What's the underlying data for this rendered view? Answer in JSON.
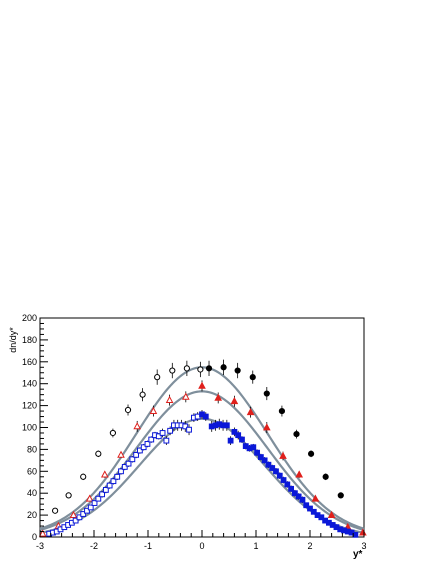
{
  "chart_data": {
    "type": "scatter",
    "title": "",
    "xlabel": "y*",
    "ylabel": "dn/dy*",
    "xlim": [
      -3,
      3
    ],
    "ylim": [
      0,
      200
    ],
    "xticks": [
      -3,
      -2,
      -1,
      0,
      1,
      2,
      3
    ],
    "xtick_labels": [
      "-3",
      "-2",
      "-1",
      "0",
      "1",
      "2",
      "3"
    ],
    "yticks": [
      0,
      20,
      40,
      60,
      80,
      100,
      120,
      140,
      160,
      180,
      200
    ],
    "ytick_labels": [
      "0",
      "20",
      "40",
      "60",
      "80",
      "100",
      "120",
      "140",
      "160",
      "180",
      "200"
    ],
    "grid": false,
    "colors": {
      "fit": "#7f8f9c",
      "black": "#000000",
      "red": "#e0201c",
      "blue": "#0a18d8"
    },
    "fits": [
      {
        "amplitude": 155,
        "width": 1.22
      },
      {
        "amplitude": 133,
        "width": 1.22
      },
      {
        "amplitude": 108,
        "width": 1.16
      }
    ],
    "series": [
      {
        "marker": "open-circle",
        "color": "#000000",
        "x": [
          -2.72,
          -2.47,
          -2.2,
          -1.92,
          -1.65,
          -1.37,
          -1.1,
          -0.83,
          -0.55,
          -0.28,
          -0.03
        ],
        "y": [
          24,
          38,
          55,
          76,
          95,
          116,
          130,
          146,
          152,
          154,
          153
        ],
        "err": [
          2,
          2,
          3,
          3,
          4,
          5,
          6,
          7,
          7,
          7,
          7
        ]
      },
      {
        "marker": "filled-circle",
        "color": "#000000",
        "x": [
          0.13,
          0.4,
          0.66,
          0.94,
          1.2,
          1.48,
          1.75,
          2.02,
          2.29,
          2.57
        ],
        "y": [
          154,
          155,
          152,
          146,
          131,
          115,
          94,
          76,
          55,
          38
        ],
        "err": [
          7,
          7,
          7,
          6,
          6,
          5,
          4,
          3,
          3,
          2
        ]
      },
      {
        "marker": "open-triangle",
        "color": "#e0201c",
        "x": [
          -2.95,
          -2.66,
          -2.38,
          -2.08,
          -1.8,
          -1.5,
          -1.2,
          -0.9,
          -0.6,
          -0.3
        ],
        "y": [
          3,
          10,
          20,
          35,
          57,
          75,
          101,
          115,
          125,
          128
        ],
        "err": [
          1,
          1,
          2,
          2,
          3,
          3,
          5,
          5,
          5,
          5
        ]
      },
      {
        "marker": "filled-triangle",
        "color": "#e0201c",
        "x": [
          0,
          0.3,
          0.6,
          0.9,
          1.2,
          1.5,
          1.8,
          2.1,
          2.4,
          2.7,
          2.98
        ],
        "y": [
          138,
          127,
          124,
          114,
          100,
          74,
          57,
          35,
          20,
          9,
          4
        ],
        "err": [
          5,
          5,
          5,
          5,
          5,
          4,
          3,
          2,
          2,
          1,
          1
        ]
      },
      {
        "marker": "open-square",
        "color": "#0a18d8",
        "x": [
          -2.83,
          -2.76,
          -2.69,
          -2.62,
          -2.55,
          -2.48,
          -2.41,
          -2.34,
          -2.27,
          -2.2,
          -2.13,
          -2.06,
          -1.99,
          -1.92,
          -1.85,
          -1.78,
          -1.71,
          -1.64,
          -1.57,
          -1.5,
          -1.43,
          -1.36,
          -1.29,
          -1.22,
          -1.15,
          -1.08,
          -1.01,
          -0.94,
          -0.87,
          -0.8,
          -0.73,
          -0.66,
          -0.59,
          -0.52,
          -0.45,
          -0.38,
          -0.31,
          -0.24,
          -0.15,
          -0.08
        ],
        "y": [
          3,
          4,
          5,
          7,
          9,
          11,
          13,
          15,
          18,
          21,
          24,
          27,
          31,
          35,
          39,
          43,
          47,
          51,
          55,
          60,
          64,
          67,
          71,
          75,
          79,
          82,
          85,
          89,
          93,
          92,
          95,
          88,
          97,
          102,
          102,
          102,
          101,
          98,
          109,
          110
        ],
        "err": [
          1,
          1,
          1,
          1,
          1,
          1,
          1,
          1,
          1,
          2,
          2,
          2,
          2,
          2,
          3,
          3,
          3,
          3,
          3,
          3,
          3,
          3,
          3,
          3,
          3,
          3,
          3,
          3,
          3,
          3,
          4,
          4,
          4,
          5,
          5,
          5,
          5,
          5,
          4,
          4
        ]
      },
      {
        "marker": "filled-square",
        "color": "#0a18d8",
        "x": [
          0,
          0.07,
          0.18,
          0.25,
          0.32,
          0.39,
          0.46,
          0.53,
          0.6,
          0.67,
          0.74,
          0.81,
          0.88,
          0.95,
          1.02,
          1.09,
          1.16,
          1.23,
          1.3,
          1.37,
          1.44,
          1.51,
          1.58,
          1.65,
          1.72,
          1.79,
          1.86,
          1.93,
          2,
          2.07,
          2.14,
          2.21,
          2.28,
          2.35,
          2.42,
          2.49,
          2.56,
          2.63,
          2.7,
          2.77,
          2.84
        ],
        "y": [
          112,
          110,
          101,
          102,
          103,
          102,
          102,
          88,
          96,
          93,
          89,
          83,
          81,
          82,
          77,
          73,
          70,
          66,
          63,
          60,
          56,
          52,
          48,
          44,
          40,
          37,
          34,
          29,
          26,
          23,
          20,
          18,
          15,
          13,
          11,
          9,
          7,
          6,
          5,
          4,
          2
        ],
        "err": [
          4,
          4,
          5,
          5,
          5,
          5,
          5,
          4,
          4,
          4,
          3,
          3,
          3,
          3,
          3,
          3,
          3,
          3,
          3,
          3,
          3,
          3,
          3,
          3,
          3,
          3,
          3,
          2,
          2,
          2,
          2,
          2,
          1,
          1,
          1,
          1,
          1,
          1,
          1,
          1,
          1
        ]
      }
    ]
  }
}
